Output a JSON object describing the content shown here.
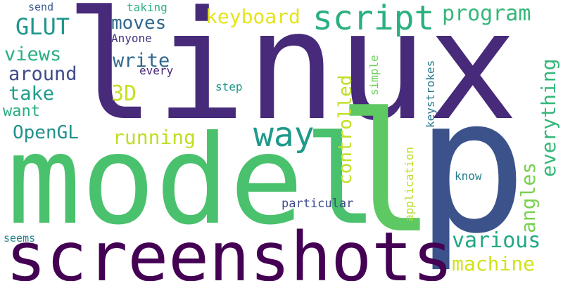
{
  "words": [
    {
      "text": "linux",
      "color": "#472a7a",
      "vertical": false
    },
    {
      "text": "model",
      "color": "#4ac16d",
      "vertical": false
    },
    {
      "text": "p",
      "color": "#3b528b",
      "vertical": false
    },
    {
      "text": "screenshots",
      "color": "#440154",
      "vertical": false
    },
    {
      "text": "l",
      "color": "#5ec962",
      "vertical": false
    },
    {
      "text": "script",
      "color": "#2ab07f",
      "vertical": false
    },
    {
      "text": "way",
      "color": "#1f9a8a",
      "vertical": false
    },
    {
      "text": "program",
      "color": "#35b779",
      "vertical": false
    },
    {
      "text": "keyboard",
      "color": "#e5e419",
      "vertical": false
    },
    {
      "text": "GLUT",
      "color": "#1f968b",
      "vertical": false
    },
    {
      "text": "moves",
      "color": "#31688e",
      "vertical": false
    },
    {
      "text": "views",
      "color": "#2ab07f",
      "vertical": false
    },
    {
      "text": "write",
      "color": "#31688e",
      "vertical": false
    },
    {
      "text": "around",
      "color": "#3e4a89",
      "vertical": false
    },
    {
      "text": "take",
      "color": "#1f9e89",
      "vertical": false
    },
    {
      "text": "3D",
      "color": "#c8e020",
      "vertical": false
    },
    {
      "text": "want",
      "color": "#26ad81",
      "vertical": false
    },
    {
      "text": "OpenGL",
      "color": "#21918c",
      "vertical": false
    },
    {
      "text": "running",
      "color": "#bddf26",
      "vertical": false
    },
    {
      "text": "various",
      "color": "#22a884",
      "vertical": false
    },
    {
      "text": "machine",
      "color": "#d2e21b",
      "vertical": false
    },
    {
      "text": "send",
      "color": "#38598c",
      "vertical": false
    },
    {
      "text": "taking",
      "color": "#2ab07f",
      "vertical": false
    },
    {
      "text": "Anyone",
      "color": "#46307e",
      "vertical": false
    },
    {
      "text": "every",
      "color": "#482677",
      "vertical": false
    },
    {
      "text": "step",
      "color": "#1f968b",
      "vertical": false
    },
    {
      "text": "know",
      "color": "#277f8e",
      "vertical": false
    },
    {
      "text": "particular",
      "color": "#3e4a89",
      "vertical": false
    },
    {
      "text": "seems",
      "color": "#26828e",
      "vertical": false
    },
    {
      "text": "controlled",
      "color": "#c0df25",
      "vertical": true
    },
    {
      "text": "simple",
      "color": "#6ece58",
      "vertical": true
    },
    {
      "text": "keystrokes",
      "color": "#2a788e",
      "vertical": true
    },
    {
      "text": "application",
      "color": "#b8de29",
      "vertical": true
    },
    {
      "text": "angles",
      "color": "#7ad151",
      "vertical": true
    },
    {
      "text": "everything",
      "color": "#35b779",
      "vertical": true
    }
  ]
}
